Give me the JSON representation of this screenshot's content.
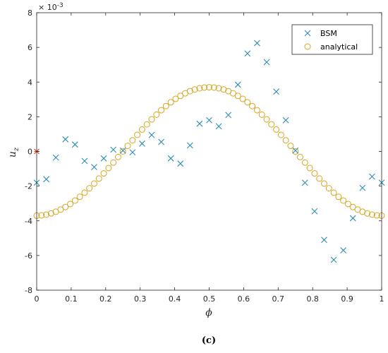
{
  "chart_data": {
    "type": "scatter",
    "title": "",
    "xlabel": "ϕ",
    "ylabel": "u",
    "ylabel_subscript": "z",
    "y_exponent_base": "× 10",
    "y_exponent_power": "-3",
    "caption": "(c)",
    "xlim": [
      0,
      1
    ],
    "ylim": [
      -8,
      8
    ],
    "x_ticks": [
      0,
      0.1,
      0.2,
      0.3,
      0.4,
      0.5,
      0.6,
      0.7,
      0.8,
      0.9,
      1
    ],
    "x_tick_labels": [
      "0",
      "0.1",
      "0.2",
      "0.3",
      "0.4",
      "0.5",
      "0.6",
      "0.7",
      "0.8",
      "0.9",
      "1"
    ],
    "y_ticks": [
      -8,
      -6,
      -4,
      -2,
      0,
      2,
      4,
      6,
      8
    ],
    "y_tick_labels": [
      "-8",
      "-6",
      "-4",
      "-2",
      "0",
      "2",
      "4",
      "6",
      "8"
    ],
    "grid": false,
    "legend_position": "top-right",
    "series": [
      {
        "name": "BSM",
        "marker": "x",
        "color": "#2a8bb5",
        "x": [
          0,
          0.0278,
          0.0556,
          0.0833,
          0.1111,
          0.1389,
          0.1667,
          0.1944,
          0.2222,
          0.25,
          0.2778,
          0.3056,
          0.3333,
          0.3611,
          0.3889,
          0.4167,
          0.4444,
          0.4722,
          0.5,
          0.5278,
          0.5556,
          0.5833,
          0.6111,
          0.6389,
          0.6667,
          0.6944,
          0.7222,
          0.75,
          0.7778,
          0.8056,
          0.8333,
          0.8611,
          0.8889,
          0.9167,
          0.9444,
          0.9722,
          1.0
        ],
        "y": [
          -1.8,
          -1.6,
          -0.35,
          0.7,
          0.4,
          -0.55,
          -0.9,
          -0.4,
          0.1,
          0.05,
          -0.05,
          0.45,
          0.95,
          0.55,
          -0.4,
          -0.7,
          0.35,
          1.6,
          1.8,
          1.45,
          2.1,
          3.85,
          5.65,
          6.25,
          5.15,
          3.45,
          1.8,
          0.05,
          -1.8,
          -3.45,
          -5.1,
          -6.25,
          -5.7,
          -3.85,
          -2.1,
          -1.45,
          -1.8
        ]
      },
      {
        "name": "analytical",
        "marker": "o",
        "color": "#d9a520",
        "curve": "cosine",
        "center": 0.5,
        "amplitude": 3.7,
        "point_count": 73
      }
    ],
    "extra_points": [
      {
        "x": 0,
        "y": 0,
        "marker": "*",
        "color": "#d9411e"
      }
    ]
  }
}
